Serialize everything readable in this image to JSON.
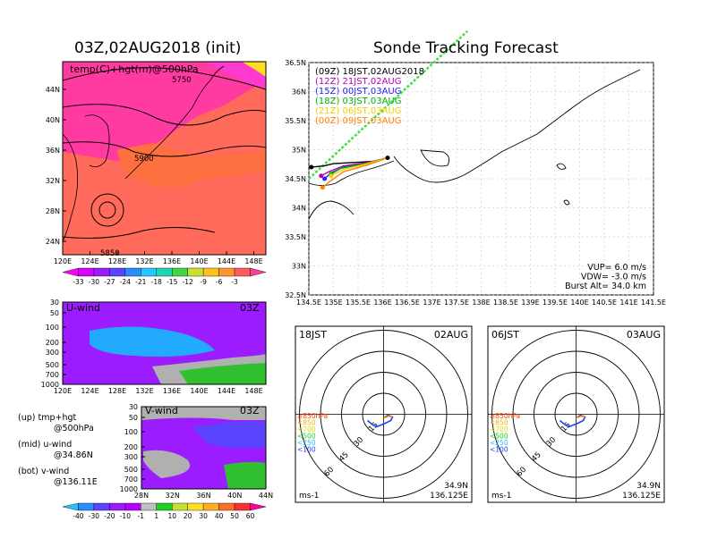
{
  "left": {
    "title": "03Z,02AUG2018 (init)",
    "map_label": "temp(C)+hgt(m)@500hPa",
    "contours": [
      "5750",
      "5900",
      "5850"
    ],
    "lat_ticks": [
      "44N",
      "40N",
      "36N",
      "32N",
      "28N",
      "24N"
    ],
    "lon_ticks": [
      "120E",
      "124E",
      "128E",
      "132E",
      "136E",
      "140E",
      "144E",
      "148E"
    ],
    "colorbar_ticks": [
      "-33",
      "-30",
      "-27",
      "-24",
      "-21",
      "-18",
      "-15",
      "-12",
      "-9",
      "-6",
      "-3"
    ],
    "colorbar_colors": [
      "#ff00ff",
      "#d600ff",
      "#9b1cff",
      "#5a44ff",
      "#2a8cff",
      "#22c8ff",
      "#20d6b0",
      "#40d840",
      "#c8e030",
      "#ffc020",
      "#ff9430",
      "#ff5c5c",
      "#ff3aa0"
    ],
    "uwind": {
      "label": "U-wind",
      "time": "03Z",
      "y_ticks": [
        "30",
        "50",
        "100",
        "200",
        "300",
        "500",
        "700",
        "1000"
      ],
      "x_ticks": [
        "120E",
        "124E",
        "128E",
        "132E",
        "136E",
        "140E",
        "144E",
        "148E"
      ]
    },
    "vwind": {
      "label": "V-wind",
      "time": "03Z",
      "y_ticks": [
        "30",
        "50",
        "100",
        "200",
        "300",
        "500",
        "700",
        "1000"
      ],
      "x_ticks": [
        "28N",
        "32N",
        "36N",
        "40N",
        "44N"
      ]
    },
    "notes": [
      "(up) tmp+hgt",
      "@500hPa",
      "(mid) u-wind",
      "@34.86N",
      "(bot) v-wind",
      "@136.11E"
    ],
    "wind_colorbar_ticks": [
      "-40",
      "-30",
      "-20",
      "-10",
      "-1",
      "1",
      "10",
      "20",
      "30",
      "40",
      "50",
      "60"
    ],
    "wind_colorbar_colors": [
      "#20c8ff",
      "#2a8cff",
      "#5a44ff",
      "#9b1cff",
      "#b400ff",
      "#c0c0c0",
      "#20d020",
      "#c8e030",
      "#ffe020",
      "#ffb020",
      "#ff7020",
      "#ff3030",
      "#ff00a0"
    ]
  },
  "right": {
    "title": "Sonde Tracking Forecast",
    "lat_ticks": [
      "36.5N",
      "36N",
      "35.5N",
      "35N",
      "34.5N",
      "34N",
      "33.5N",
      "33N",
      "32.5N"
    ],
    "lon_ticks": [
      "134.5E",
      "135E",
      "135.5E",
      "136E",
      "136.5E",
      "137E",
      "137.5E",
      "138E",
      "138.5E",
      "139E",
      "139.5E",
      "140E",
      "140.5E",
      "141E",
      "141.5E"
    ],
    "legend": [
      {
        "text": "(09Z)  18JST,02AUG2018",
        "color": "#000000"
      },
      {
        "text": "(12Z)  21JST,02AUG",
        "color": "#b400b4"
      },
      {
        "text": "(15Z)  00JST,03AUG",
        "color": "#2020ff"
      },
      {
        "text": "(18Z)  03JST,03AUG",
        "color": "#00b000"
      },
      {
        "text": "(21Z)  06JST,03AUG",
        "color": "#f0d000"
      },
      {
        "text": "(00Z)  09JST,03AUG",
        "color": "#ff8000"
      }
    ],
    "params": [
      "VUP=  6.0 m/s",
      "VDW=  -3.0 m/s",
      "Burst Alt=  34.0 km"
    ]
  },
  "hodographs": [
    {
      "time": "18JST",
      "date": "02AUG",
      "lat": "34.9N",
      "lon": "136.125E",
      "unit": "ms-1",
      "rings": [
        "15",
        "30",
        "45",
        "60"
      ]
    },
    {
      "time": "06JST",
      "date": "03AUG",
      "lat": "34.9N",
      "lon": "136.125E",
      "unit": "ms-1",
      "rings": [
        "15",
        "30",
        "45",
        "60"
      ]
    }
  ],
  "hodo_legend": [
    {
      "text": "≥850hPa",
      "color": "#ff4000"
    },
    {
      "text": "<850",
      "color": "#ffb000"
    },
    {
      "text": "<700",
      "color": "#e0e000"
    },
    {
      "text": "<500",
      "color": "#20d020"
    },
    {
      "text": "<250",
      "color": "#20c0ff"
    },
    {
      "text": "<100",
      "color": "#2040ff"
    }
  ],
  "chart_data": [
    {
      "type": "heatmap",
      "title": "03Z,02AUG2018 (init)",
      "label": "temp(C)+hgt(m)@500hPa",
      "xlim": [
        "120E",
        "150E"
      ],
      "ylim": [
        "22N",
        "47N"
      ],
      "contour_labels": [
        5750,
        5900,
        5850
      ],
      "colorbar": [
        -33,
        -30,
        -27,
        -24,
        -21,
        -18,
        -15,
        -12,
        -9,
        -6,
        -3
      ]
    },
    {
      "type": "heatmap",
      "label": "U-wind",
      "y_ticks": [
        30,
        50,
        100,
        200,
        300,
        500,
        700,
        1000
      ],
      "x_ticks": [
        "120E",
        "124E",
        "128E",
        "132E",
        "136E",
        "140E",
        "144E",
        "148E"
      ]
    },
    {
      "type": "heatmap",
      "label": "V-wind",
      "y_ticks": [
        30,
        50,
        100,
        200,
        300,
        500,
        700,
        1000
      ],
      "x_ticks": [
        "28N",
        "32N",
        "36N",
        "40N",
        "44N"
      ],
      "colorbar": [
        -40,
        -30,
        -20,
        -10,
        -1,
        1,
        10,
        20,
        30,
        40,
        50,
        60
      ]
    },
    {
      "type": "line",
      "title": "Sonde Tracking Forecast",
      "xlim": [
        134.5,
        141.5
      ],
      "ylim": [
        32.5,
        36.5
      ],
      "series": [
        {
          "name": "(09Z)  18JST,02AUG2018",
          "x": [
            136.1,
            135.85,
            135.4,
            135.0,
            134.8,
            134.55
          ],
          "y": [
            34.86,
            34.8,
            34.78,
            34.76,
            34.72,
            34.7
          ]
        },
        {
          "name": "(12Z)  21JST,02AUG",
          "x": [
            136.1,
            135.7,
            135.2,
            134.9,
            134.75
          ],
          "y": [
            34.86,
            34.78,
            34.72,
            34.62,
            34.55
          ]
        },
        {
          "name": "(15Z)  00JST,03AUG",
          "x": [
            136.1,
            135.7,
            135.2,
            134.95,
            134.82
          ],
          "y": [
            34.86,
            34.76,
            34.7,
            34.6,
            34.5
          ]
        },
        {
          "name": "(18Z)  03JST,03AUG",
          "x": [
            136.1,
            135.6,
            135.15,
            134.95
          ],
          "y": [
            34.86,
            34.75,
            34.68,
            34.58
          ]
        },
        {
          "name": "(21Z)  06JST,03AUG",
          "x": [
            136.1,
            135.6,
            135.2,
            134.95
          ],
          "y": [
            34.86,
            34.74,
            34.66,
            34.55
          ]
        },
        {
          "name": "(00Z)  09JST,03AUG",
          "x": [
            136.1,
            135.7,
            135.2,
            134.92,
            134.78
          ],
          "y": [
            34.86,
            34.74,
            34.62,
            34.45,
            34.35
          ]
        }
      ]
    }
  ]
}
